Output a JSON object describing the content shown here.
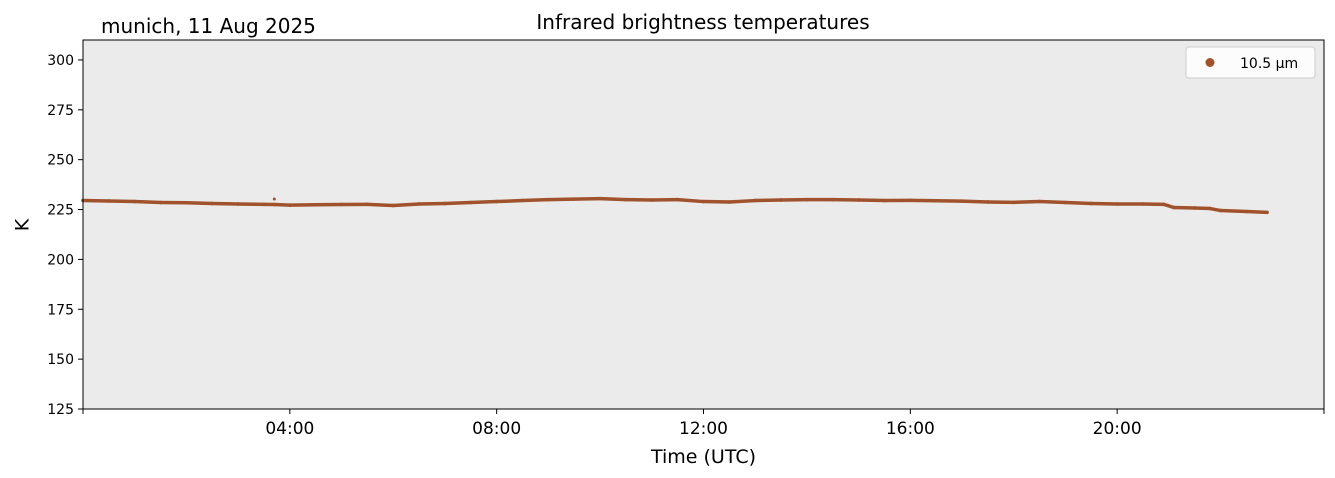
{
  "location_date": "munich, 11 Aug 2025",
  "chart_data": {
    "type": "scatter",
    "title": "Infrared brightness temperatures",
    "xlabel": "Time (UTC)",
    "ylabel": "K",
    "ylim": [
      125,
      310
    ],
    "xlim_hours": [
      0,
      24
    ],
    "yticks": [
      125,
      150,
      175,
      200,
      225,
      250,
      275,
      300
    ],
    "xticks": [
      {
        "hour": 4,
        "label": "04:00"
      },
      {
        "hour": 8,
        "label": "08:00"
      },
      {
        "hour": 12,
        "label": "12:00"
      },
      {
        "hour": 16,
        "label": "16:00"
      },
      {
        "hour": 20,
        "label": "20:00"
      }
    ],
    "grid": false,
    "legend": "top-right",
    "background": "#ebebeb",
    "series": [
      {
        "name": "10.5 µm",
        "color": "#a0522d",
        "points": [
          {
            "hour": 0.0,
            "value": 229.5
          },
          {
            "hour": 0.5,
            "value": 229.3
          },
          {
            "hour": 1.0,
            "value": 229.0
          },
          {
            "hour": 1.5,
            "value": 228.5
          },
          {
            "hour": 2.0,
            "value": 228.4
          },
          {
            "hour": 2.5,
            "value": 228.0
          },
          {
            "hour": 3.0,
            "value": 227.8
          },
          {
            "hour": 3.5,
            "value": 227.6
          },
          {
            "hour": 3.7,
            "value": 227.5
          },
          {
            "hour": 4.0,
            "value": 227.2
          },
          {
            "hour": 4.5,
            "value": 227.4
          },
          {
            "hour": 5.0,
            "value": 227.5
          },
          {
            "hour": 5.5,
            "value": 227.6
          },
          {
            "hour": 6.0,
            "value": 227.0
          },
          {
            "hour": 6.5,
            "value": 227.8
          },
          {
            "hour": 7.0,
            "value": 228.0
          },
          {
            "hour": 7.5,
            "value": 228.5
          },
          {
            "hour": 8.0,
            "value": 229.0
          },
          {
            "hour": 8.5,
            "value": 229.5
          },
          {
            "hour": 9.0,
            "value": 230.0
          },
          {
            "hour": 9.5,
            "value": 230.2
          },
          {
            "hour": 10.0,
            "value": 230.5
          },
          {
            "hour": 10.5,
            "value": 230.0
          },
          {
            "hour": 11.0,
            "value": 229.8
          },
          {
            "hour": 11.5,
            "value": 230.0
          },
          {
            "hour": 12.0,
            "value": 229.0
          },
          {
            "hour": 12.5,
            "value": 228.8
          },
          {
            "hour": 13.0,
            "value": 229.5
          },
          {
            "hour": 13.5,
            "value": 229.8
          },
          {
            "hour": 14.0,
            "value": 230.0
          },
          {
            "hour": 14.5,
            "value": 230.0
          },
          {
            "hour": 15.0,
            "value": 229.8
          },
          {
            "hour": 15.5,
            "value": 229.5
          },
          {
            "hour": 16.0,
            "value": 229.6
          },
          {
            "hour": 16.5,
            "value": 229.4
          },
          {
            "hour": 17.0,
            "value": 229.2
          },
          {
            "hour": 17.5,
            "value": 228.8
          },
          {
            "hour": 18.0,
            "value": 228.6
          },
          {
            "hour": 18.5,
            "value": 229.0
          },
          {
            "hour": 19.0,
            "value": 228.5
          },
          {
            "hour": 19.5,
            "value": 228.0
          },
          {
            "hour": 20.0,
            "value": 227.8
          },
          {
            "hour": 20.5,
            "value": 227.8
          },
          {
            "hour": 20.9,
            "value": 227.6
          },
          {
            "hour": 21.1,
            "value": 226.0
          },
          {
            "hour": 21.5,
            "value": 225.8
          },
          {
            "hour": 21.8,
            "value": 225.5
          },
          {
            "hour": 22.0,
            "value": 224.5
          },
          {
            "hour": 22.5,
            "value": 224.0
          },
          {
            "hour": 22.9,
            "value": 223.6
          }
        ],
        "outliers": [
          {
            "hour": 3.7,
            "value": 230.3
          }
        ]
      }
    ]
  }
}
